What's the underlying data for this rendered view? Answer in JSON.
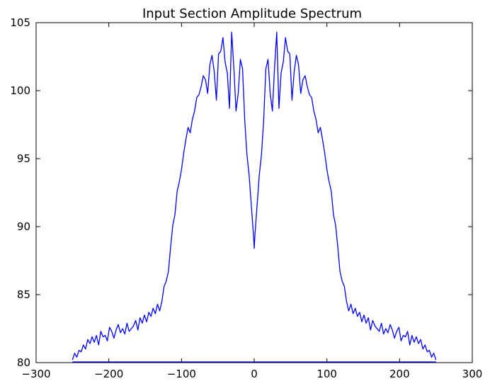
{
  "chart_data": {
    "type": "line",
    "title": "Input Section Amplitude Spectrum",
    "xlabel": "",
    "ylabel": "",
    "xlim": [
      -300,
      300
    ],
    "ylim": [
      80,
      105
    ],
    "x_ticks": [
      -300,
      -200,
      -100,
      0,
      100,
      200,
      300
    ],
    "y_ticks": [
      80,
      85,
      90,
      95,
      100,
      105
    ],
    "grid": false,
    "legend": "none",
    "line_color": "#0000ff",
    "series": [
      {
        "x": [
          -250,
          -247,
          -244,
          -241,
          -238,
          -235,
          -232,
          -229,
          -226,
          -223,
          -220,
          -217,
          -214,
          -211,
          -208,
          -205,
          -202,
          -199,
          -196,
          -193,
          -190,
          -187,
          -184,
          -181,
          -178,
          -175,
          -172,
          -169,
          -166,
          -163,
          -160,
          -157,
          -154,
          -151,
          -148,
          -145,
          -142,
          -139,
          -136,
          -133,
          -130,
          -127,
          -124,
          -121,
          -118,
          -115,
          -112,
          -109,
          -106,
          -103,
          -100,
          -97,
          -94,
          -91,
          -88,
          -85,
          -82,
          -79,
          -76,
          -73,
          -70,
          -67,
          -64,
          -61,
          -58,
          -55,
          -52,
          -49,
          -46,
          -43,
          -40,
          -37,
          -34,
          -31,
          -28,
          -25,
          -22,
          -19,
          -16,
          -13,
          -10,
          -7,
          -4,
          -1,
          0,
          1,
          4,
          7,
          10,
          13,
          16,
          19,
          22,
          25,
          28,
          31,
          34,
          37,
          40,
          43,
          46,
          49,
          52,
          55,
          58,
          61,
          64,
          67,
          70,
          73,
          76,
          79,
          82,
          85,
          88,
          91,
          94,
          97,
          100,
          103,
          106,
          109,
          112,
          115,
          118,
          121,
          124,
          127,
          130,
          133,
          136,
          139,
          142,
          145,
          148,
          151,
          154,
          157,
          160,
          163,
          166,
          169,
          172,
          175,
          178,
          181,
          184,
          187,
          190,
          193,
          196,
          199,
          202,
          205,
          208,
          211,
          214,
          217,
          220,
          223,
          226,
          229,
          232,
          235,
          238,
          241,
          244,
          247,
          250
        ],
        "y": [
          80.2,
          80.7,
          80.4,
          80.9,
          80.8,
          81.3,
          81.0,
          81.7,
          81.4,
          81.9,
          81.5,
          82.0,
          81.3,
          82.3,
          81.9,
          82.0,
          81.6,
          82.6,
          82.3,
          81.8,
          82.4,
          82.8,
          82.2,
          82.5,
          82.1,
          82.9,
          82.3,
          82.5,
          82.7,
          83.1,
          82.4,
          83.3,
          82.9,
          83.5,
          83.0,
          83.7,
          83.4,
          84.0,
          83.6,
          84.3,
          83.8,
          84.5,
          85.6,
          86.0,
          86.7,
          88.5,
          90.1,
          90.9,
          92.6,
          93.3,
          94.2,
          95.4,
          96.4,
          97.3,
          96.9,
          97.9,
          98.5,
          99.5,
          99.7,
          100.3,
          101.1,
          100.8,
          99.8,
          101.9,
          102.6,
          101.4,
          99.3,
          102.7,
          102.9,
          103.9,
          102.1,
          101.3,
          98.7,
          104.3,
          101.7,
          98.5,
          99.8,
          102.3,
          101.6,
          97.8,
          95.3,
          93.8,
          91.6,
          89.4,
          88.4,
          89.4,
          91.6,
          93.8,
          95.3,
          97.8,
          101.6,
          102.3,
          99.8,
          98.5,
          101.7,
          104.3,
          98.7,
          101.3,
          102.1,
          103.9,
          102.9,
          102.7,
          99.3,
          101.4,
          102.6,
          101.9,
          99.8,
          100.8,
          101.1,
          100.3,
          99.7,
          99.5,
          98.5,
          97.9,
          96.9,
          97.3,
          96.4,
          95.4,
          94.2,
          93.3,
          92.6,
          90.9,
          90.1,
          88.5,
          86.7,
          86.0,
          85.6,
          84.5,
          83.8,
          84.3,
          83.6,
          84.0,
          83.4,
          83.7,
          83.0,
          83.5,
          82.9,
          83.3,
          82.4,
          83.1,
          82.7,
          82.5,
          82.3,
          82.9,
          82.1,
          82.5,
          82.2,
          82.8,
          82.4,
          81.8,
          82.3,
          82.6,
          81.6,
          82.0,
          81.9,
          82.3,
          81.3,
          82.0,
          81.5,
          81.9,
          81.4,
          81.7,
          81.0,
          81.3,
          80.8,
          80.9,
          80.4,
          80.7,
          80.2
        ]
      },
      {
        "x": [
          -250,
          250
        ],
        "y": [
          80.05,
          80.05
        ]
      }
    ]
  }
}
